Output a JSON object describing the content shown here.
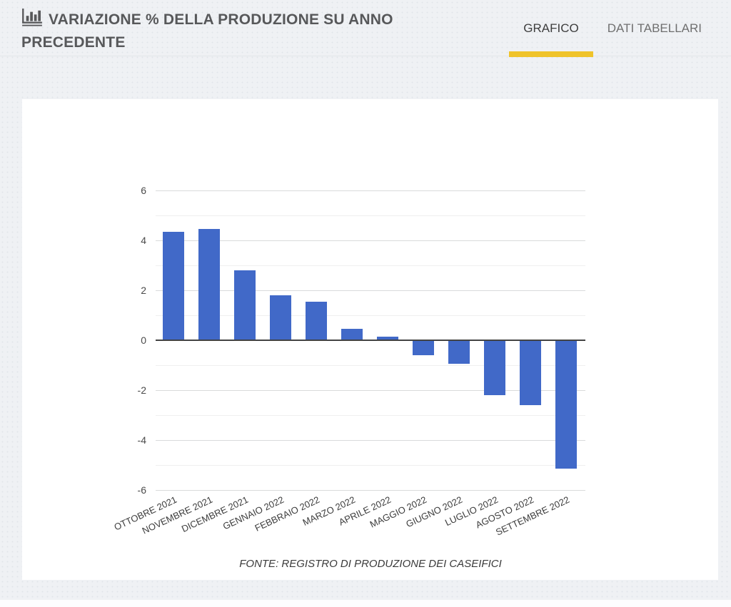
{
  "header": {
    "title": "VARIAZIONE % DELLA PRODUZIONE SU ANNO PRECEDENTE",
    "icon": "bar-chart-icon",
    "tabs": [
      {
        "label": "GRAFICO",
        "active": true
      },
      {
        "label": "DATI TABELLARI",
        "active": false
      }
    ]
  },
  "chart_data": {
    "type": "bar",
    "title": "VARIAZIONE % DELLA PRODUZIONE SU ANNO PRECEDENTE",
    "categories": [
      "OTTOBRE 2021",
      "NOVEMBRE 2021",
      "DICEMBRE 2021",
      "GENNAIO 2022",
      "FEBBRAIO 2022",
      "MARZO 2022",
      "APRILE 2022",
      "MAGGIO 2022",
      "GIUGNO 2022",
      "LUGLIO 2022",
      "AGOSTO 2022",
      "SETTEMBRE 2022"
    ],
    "values": [
      4.35,
      4.45,
      2.8,
      1.8,
      1.55,
      0.45,
      0.15,
      -0.6,
      -0.95,
      -2.2,
      -2.6,
      -5.15
    ],
    "xlabel": "",
    "ylabel": "",
    "ylim": [
      -6,
      6
    ],
    "yticks": [
      6,
      4,
      2,
      0,
      -2,
      -4,
      -6
    ],
    "minor_ticks": [
      5,
      3,
      1,
      -1,
      -3,
      -5
    ],
    "grid": true,
    "legend": "none",
    "source_note": "FONTE: REGISTRO DI PRODUZIONE DEI CASEIFICI"
  },
  "colors": {
    "bar_blue": "#4169c8",
    "accent_yellow": "#efc32a",
    "title_gray": "#57585a"
  }
}
